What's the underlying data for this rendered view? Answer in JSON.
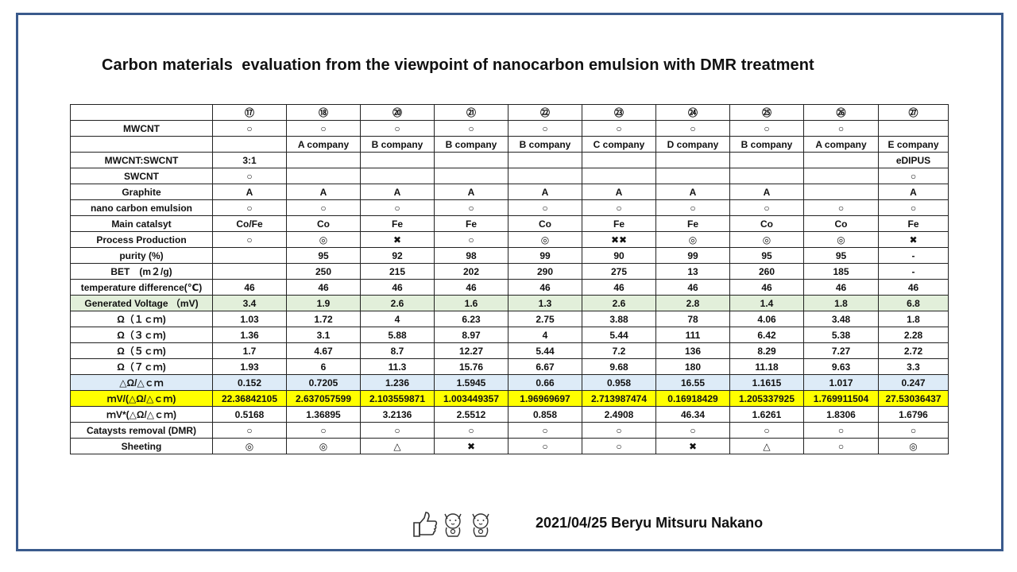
{
  "title": "Carbon materials  evaluation from the viewpoint of nanocarbon emulsion with DMR treatment",
  "table": {
    "header": [
      "",
      "⑰",
      "⑱",
      "⑳",
      "㉑",
      "㉒",
      "㉓",
      "㉔",
      "㉕",
      "㉖",
      "㉗"
    ],
    "rows": [
      {
        "label": "MWCNT",
        "style": "",
        "cells": [
          "○",
          "○",
          "○",
          "○",
          "○",
          "○",
          "○",
          "○",
          "○",
          ""
        ]
      },
      {
        "label": "",
        "style": "",
        "cells": [
          "",
          "A company",
          "B company",
          "B company",
          "B company",
          "C company",
          "D company",
          "B company",
          "A company",
          "E company"
        ]
      },
      {
        "label": "MWCNT:SWCNT",
        "style": "",
        "cells": [
          "3:1",
          "",
          "",
          "",
          "",
          "",
          "",
          "",
          "",
          "eDIPUS"
        ]
      },
      {
        "label": "SWCNT",
        "style": "",
        "cells": [
          "○",
          "",
          "",
          "",
          "",
          "",
          "",
          "",
          "",
          "○"
        ]
      },
      {
        "label": "Graphite",
        "style": "",
        "cells": [
          "A",
          "A",
          "A",
          "A",
          "A",
          "A",
          "A",
          "A",
          "",
          "A"
        ]
      },
      {
        "label": "nano carbon emulsion",
        "style": "",
        "cells": [
          "○",
          "○",
          "○",
          "○",
          "○",
          "○",
          "○",
          "○",
          "○",
          "○"
        ]
      },
      {
        "label": "Main catalsyt",
        "style": "",
        "cells": [
          "Co/Fe",
          "Co",
          "Fe",
          "Fe",
          "Co",
          "Fe",
          "Fe",
          "Co",
          "Co",
          "Fe"
        ]
      },
      {
        "label": "Process Production",
        "style": "",
        "cells": [
          "○",
          "◎",
          "✖",
          "○",
          "◎",
          "✖✖",
          "◎",
          "◎",
          "◎",
          "✖"
        ]
      },
      {
        "label": "purity (%)",
        "style": "",
        "cells": [
          "",
          "95",
          "92",
          "98",
          "99",
          "90",
          "99",
          "95",
          "95",
          "-"
        ]
      },
      {
        "label": "BET　(m２/g)",
        "style": "",
        "cells": [
          "",
          "250",
          "215",
          "202",
          "290",
          "275",
          "13",
          "260",
          "185",
          "-"
        ]
      },
      {
        "label": "temperature difference(℃)",
        "style": "",
        "cells": [
          "46",
          "46",
          "46",
          "46",
          "46",
          "46",
          "46",
          "46",
          "46",
          "46"
        ]
      },
      {
        "label": "Generated Voltage （mV)",
        "style": "green",
        "cells": [
          "3.4",
          "1.9",
          "2.6",
          "1.6",
          "1.3",
          "2.6",
          "2.8",
          "1.4",
          "1.8",
          "6.8"
        ]
      },
      {
        "label": "Ω（１ｃｍ)",
        "style": "",
        "cells": [
          "1.03",
          "1.72",
          "4",
          "6.23",
          "2.75",
          "3.88",
          "78",
          "4.06",
          "3.48",
          "1.8"
        ]
      },
      {
        "label": "Ω（３ｃｍ)",
        "style": "",
        "cells": [
          "1.36",
          "3.1",
          "5.88",
          "8.97",
          "4",
          "5.44",
          "111",
          "6.42",
          "5.38",
          "2.28"
        ]
      },
      {
        "label": "Ω（５ｃｍ)",
        "style": "",
        "cells": [
          "1.7",
          "4.67",
          "8.7",
          "12.27",
          "5.44",
          "7.2",
          "136",
          "8.29",
          "7.27",
          "2.72"
        ]
      },
      {
        "label": "Ω（７ｃｍ)",
        "style": "",
        "cells": [
          "1.93",
          "6",
          "11.3",
          "15.76",
          "6.67",
          "9.68",
          "180",
          "11.18",
          "9.63",
          "3.3"
        ]
      },
      {
        "label": "△Ω/△ｃｍ",
        "style": "blue",
        "cells": [
          "0.152",
          "0.7205",
          "1.236",
          "1.5945",
          "0.66",
          "0.958",
          "16.55",
          "1.1615",
          "1.017",
          "0.247"
        ]
      },
      {
        "label": "ｍV/(△Ω/△ｃｍ)",
        "style": "yellow",
        "cells": [
          "22.36842105",
          "2.637057599",
          "2.103559871",
          "1.003449357",
          "1.96969697",
          "2.713987474",
          "0.16918429",
          "1.205337925",
          "1.769911504",
          "27.53036437"
        ]
      },
      {
        "label": "ｍV*(△Ω/△ｃｍ)",
        "style": "",
        "cells": [
          "0.5168",
          "1.36895",
          "3.2136",
          "2.5512",
          "0.858",
          "2.4908",
          "46.34",
          "1.6261",
          "1.8306",
          "1.6796"
        ]
      },
      {
        "label": "Catayst​s removal (DMR)",
        "style": "",
        "cells": [
          "○",
          "○",
          "○",
          "○",
          "○",
          "○",
          "○",
          "○",
          "○",
          "○"
        ]
      },
      {
        "label": "Sheeting",
        "style": "",
        "cells": [
          "◎",
          "◎",
          "△",
          "✖",
          "○",
          "○",
          "✖",
          "△",
          "○",
          "◎"
        ]
      }
    ]
  },
  "footer": {
    "icons": [
      "thumbs-up-icon",
      "lucky-cat-icon",
      "lucky-cat-icon"
    ],
    "signature": "2021/04/25 Beryu Mitsuru Nakano"
  }
}
